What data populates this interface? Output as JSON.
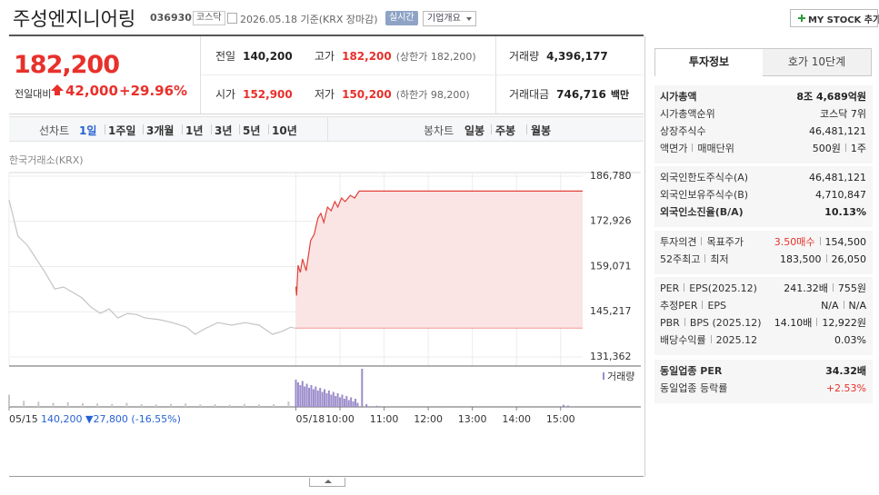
{
  "header": {
    "title": "주성엔지니어링",
    "code": "036930",
    "market": "코스닥",
    "date": "2026.05.18 기준(KRX 장마감)",
    "realtime": "실시간",
    "company_button": "기업개요",
    "mystock_button": "MY STOCK 추가"
  },
  "quote": {
    "price": "182,200",
    "change_label": "전일대비",
    "change": "42,000",
    "change_pct": "+29.96%",
    "cells": [
      {
        "label": "전일",
        "value": "140,200"
      },
      {
        "label": "고가",
        "value": "182,200",
        "note": "(상한가 182,200)"
      },
      {
        "label": "거래량",
        "value": "4,396,177"
      },
      {
        "label": "시가",
        "value": "152,900"
      },
      {
        "label": "저가",
        "value": "150,200",
        "note": "(하한가 98,200)"
      },
      {
        "label": "거래대금",
        "value": "746,716",
        "unit": "백만"
      }
    ]
  },
  "periods": {
    "line_label": "선차트",
    "line_tabs": [
      "1일",
      "1주일",
      "3개월",
      "1년",
      "3년",
      "5년",
      "10년"
    ],
    "candle_label": "봉차트",
    "candle_tabs": [
      "일봉",
      "주봉",
      "월봉"
    ]
  },
  "info": {
    "tabs": [
      "투자정보",
      "호가 10단계"
    ],
    "groups": [
      [
        {
          "label": [
            "시가총액"
          ],
          "value": [
            "8조 4,689억원"
          ]
        },
        {
          "label": [
            "시가총액순위"
          ],
          "value": [
            "코스닥 7위"
          ]
        },
        {
          "label": [
            "상장주식수"
          ],
          "value": [
            "46,481,121"
          ]
        },
        {
          "label": [
            "액면가",
            "매매단위"
          ],
          "value": [
            "500원",
            "1주"
          ]
        }
      ],
      [
        {
          "label": [
            "외국인한도주식수(A)"
          ],
          "value": [
            "46,481,121"
          ]
        },
        {
          "label": [
            "외국인보유주식수(B)"
          ],
          "value": [
            "4,710,847"
          ]
        },
        {
          "label": [
            "외국인소진율(B/A)"
          ],
          "value": [
            "10.13%"
          ]
        }
      ],
      [
        {
          "label": [
            "투자의견",
            "목표주가"
          ],
          "value": [
            "3.50매수",
            "154,500"
          ]
        },
        {
          "label": [
            "52주최고",
            "최저"
          ],
          "value": [
            "183,500",
            "26,050"
          ]
        }
      ],
      [
        {
          "label": [
            "PER",
            "EPS(2025.12)"
          ],
          "value": [
            "241.32배",
            "755원"
          ]
        },
        {
          "label": [
            "추정PER",
            "EPS"
          ],
          "value": [
            "N/A",
            "N/A"
          ]
        },
        {
          "label": [
            "PBR",
            "BPS (2025.12)"
          ],
          "value": [
            "14.10배",
            "12,922원"
          ]
        },
        {
          "label": [
            "배당수익률",
            "2025.12"
          ],
          "value": [
            "0.03%"
          ]
        }
      ],
      [
        {
          "label": [
            "동일업종 PER"
          ],
          "value": [
            "34.32배"
          ]
        },
        {
          "label": [
            "동일업종 등락률"
          ],
          "value": [
            "+2.53%"
          ]
        }
      ]
    ]
  },
  "chart_data": [
    {
      "type": "line",
      "source": "한국거래소(KRX)",
      "note": "140,200 ▼27,800 (-16.55%)",
      "xlim": [
        0,
        780
      ],
      "xticks": [
        {
          "value": 0,
          "label": "05/15"
        },
        {
          "value": 390,
          "label": "05/18"
        },
        {
          "value": 450,
          "label": "10:00"
        },
        {
          "value": 510,
          "label": "11:00"
        },
        {
          "value": 570,
          "label": "12:00"
        },
        {
          "value": 630,
          "label": "13:00"
        },
        {
          "value": 690,
          "label": "14:00"
        },
        {
          "value": 750,
          "label": "15:00"
        }
      ],
      "ylim": [
        131362,
        186780
      ],
      "yticks": [
        {
          "value": 131362,
          "label": "131,362"
        },
        {
          "value": 145217,
          "label": "145,217"
        },
        {
          "value": 159071,
          "label": "159,071"
        },
        {
          "value": 172926,
          "label": "172,926"
        },
        {
          "value": 186780,
          "label": "186,780"
        }
      ],
      "grid": true,
      "baseline": 140200,
      "series": [
        {
          "color": "#c4c4c4",
          "x": [
            0,
            12,
            25,
            37,
            49,
            62,
            74,
            87,
            99,
            111,
            124,
            136,
            148,
            161,
            173,
            185,
            204,
            222,
            241,
            253,
            266,
            284,
            303,
            321,
            340,
            358,
            371,
            383,
            389
          ],
          "values": [
            179500,
            168400,
            165600,
            161400,
            157300,
            152200,
            152800,
            151100,
            149500,
            146700,
            144700,
            146100,
            143300,
            144700,
            144400,
            143300,
            142800,
            141900,
            140500,
            138300,
            140000,
            141900,
            141100,
            141900,
            141100,
            138300,
            139200,
            140500,
            140200
          ]
        },
        {
          "color": "#e0413a",
          "fill": "#fbe4e4",
          "x": [
            390,
            391,
            393,
            396,
            399,
            404,
            410,
            415,
            420,
            424,
            428,
            433,
            438,
            443,
            447,
            452,
            457,
            464,
            470,
            476,
            780
          ],
          "values": [
            152900,
            150200,
            159500,
            157300,
            161400,
            157800,
            167000,
            169000,
            174000,
            175400,
            172600,
            177300,
            176200,
            179000,
            177300,
            180100,
            179000,
            180900,
            180100,
            182200,
            182200
          ]
        }
      ]
    },
    {
      "type": "bar",
      "title": "거래량",
      "xlim": [
        0,
        780
      ],
      "ylim": [
        0,
        300000
      ],
      "series": [
        {
          "color": "#c8c8c8",
          "x": [
            0,
            20,
            40,
            60,
            80,
            100,
            120,
            140,
            160,
            180,
            200,
            220,
            240,
            260,
            280,
            300,
            320,
            340,
            360,
            380
          ],
          "values": [
            90000,
            45000,
            38000,
            30000,
            35000,
            28000,
            25000,
            22000,
            30000,
            20000,
            18000,
            22000,
            25000,
            18000,
            20000,
            15000,
            22000,
            18000,
            20000,
            40000
          ]
        },
        {
          "color": "#9a8ccb",
          "x": [
            390,
            393,
            396,
            399,
            402,
            405,
            408,
            411,
            414,
            417,
            420,
            423,
            426,
            429,
            432,
            435,
            438,
            441,
            444,
            447,
            450,
            453,
            456,
            459,
            462,
            465,
            468,
            471,
            474,
            480,
            486,
            500,
            550,
            600,
            650,
            700,
            754,
            760
          ],
          "values": [
            200000,
            180000,
            160000,
            190000,
            150000,
            170000,
            140000,
            160000,
            130000,
            150000,
            120000,
            140000,
            110000,
            130000,
            100000,
            120000,
            90000,
            110000,
            80000,
            100000,
            70000,
            90000,
            60000,
            80000,
            50000,
            70000,
            40000,
            60000,
            30000,
            280000,
            20000,
            8000,
            5000,
            5000,
            5000,
            5000,
            15000,
            10000
          ]
        }
      ]
    }
  ]
}
